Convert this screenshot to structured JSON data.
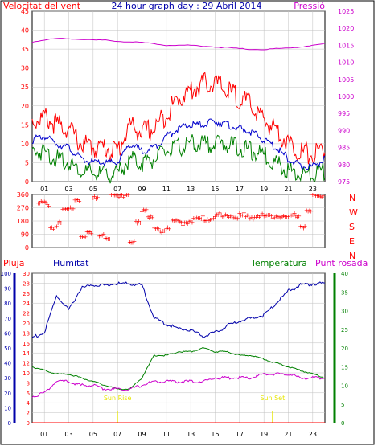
{
  "title": "24 hour graph day : 29 Abril 2014",
  "colors": {
    "wind": "#ff0000",
    "wind_avg": "#0000cc",
    "wind_gust_low": "#008000",
    "pressure": "#cc00cc",
    "direction": "#ff0000",
    "humidity": "#0000aa",
    "temperature": "#008000",
    "dewpoint": "#cc00cc",
    "rain": "#ff0000",
    "sun_marker": "#e6e600",
    "grid": "#c0c0c0"
  },
  "x_ticks": [
    "01",
    "03",
    "05",
    "07",
    "09",
    "11",
    "13",
    "15",
    "17",
    "19",
    "21",
    "23"
  ],
  "panel1": {
    "left_label": "Velocitat del vent",
    "right_label": "Pressió",
    "left_ticks": [
      "0",
      "5",
      "10",
      "15",
      "20",
      "25",
      "30",
      "35",
      "40",
      "45"
    ],
    "right_ticks": [
      "975",
      "980",
      "985",
      "990",
      "995",
      "1000",
      "1005",
      "1010",
      "1015",
      "1020",
      "1025"
    ]
  },
  "panel2": {
    "left_ticks": [
      "0",
      "90",
      "180",
      "270",
      "360"
    ],
    "right_labels": [
      "N",
      "W",
      "S",
      "E",
      "N"
    ]
  },
  "panel3": {
    "labels": {
      "rain": "Pluja",
      "humidity": "Humitat",
      "temperature": "Temperatura",
      "dewpoint": "Punt rosada"
    },
    "humidity_ticks": [
      "0",
      "10",
      "20",
      "30",
      "40",
      "50",
      "60",
      "70",
      "80",
      "90",
      "100"
    ],
    "rain_ticks": [
      "0",
      "2",
      "4",
      "6",
      "8",
      "10",
      "12",
      "14",
      "16",
      "18",
      "20",
      "22",
      "24",
      "26",
      "28",
      "30"
    ],
    "temp_ticks": [
      "0",
      "5",
      "10",
      "15",
      "20",
      "25",
      "30",
      "35",
      "40"
    ],
    "sunrise_label": "Sun Rise",
    "sunset_label": "Sun Set"
  },
  "chart_data": [
    {
      "type": "line",
      "title": "24 hour graph day : 29 Abril 2014",
      "xlabel": "",
      "ylabel": "Velocitat del vent",
      "ylim": [
        0,
        45
      ],
      "y2lim": [
        975,
        1025
      ],
      "x": [
        0,
        1,
        2,
        3,
        4,
        5,
        6,
        7,
        8,
        9,
        10,
        11,
        12,
        13,
        14,
        15,
        16,
        17,
        18,
        19,
        20,
        21,
        22,
        23,
        24
      ],
      "series": [
        {
          "name": "",
          "role": "wind_gust",
          "values": [
            16,
            17,
            15,
            14,
            10,
            9,
            9,
            8,
            15,
            13,
            14,
            18,
            22,
            24,
            26,
            26,
            24,
            22,
            20,
            16,
            14,
            10,
            8,
            7,
            9
          ]
        },
        {
          "name": "",
          "role": "wind_avg",
          "values": [
            11,
            12,
            10,
            9,
            6,
            5,
            5,
            5,
            10,
            8,
            9,
            12,
            14,
            15,
            15,
            16,
            15,
            14,
            13,
            11,
            9,
            6,
            4,
            4,
            6
          ]
        },
        {
          "name": "",
          "role": "wind_low",
          "values": [
            8,
            8,
            6,
            5,
            3,
            2,
            2,
            2,
            6,
            5,
            6,
            8,
            9,
            10,
            10,
            10,
            10,
            9,
            8,
            7,
            5,
            3,
            2,
            2,
            3
          ]
        },
        {
          "name": "Pressió",
          "role": "pressure",
          "values": [
            1016,
            1016.5,
            1017,
            1017,
            1016.8,
            1016.5,
            1016.5,
            1016.2,
            1016,
            1015.8,
            1015.5,
            1015,
            1015,
            1015,
            1014.8,
            1014.5,
            1014.3,
            1014,
            1013.8,
            1013.8,
            1014,
            1014.2,
            1014.5,
            1015,
            1015.5
          ]
        }
      ]
    },
    {
      "type": "scatter",
      "ylabel": "",
      "ylim": [
        0,
        360
      ],
      "series": [
        {
          "name": "",
          "role": "direction",
          "x": [
            0.5,
            1,
            1.5,
            2,
            2.5,
            3,
            3.5,
            4,
            4.5,
            5,
            5.5,
            6,
            6.5,
            7,
            7.5,
            8,
            8.5,
            9,
            9.5,
            10,
            10.5,
            11,
            11.5,
            12,
            12.5,
            13,
            13.5,
            14,
            14.5,
            15,
            15.5,
            16,
            16.5,
            17,
            17.5,
            18,
            18.5,
            19,
            19.5,
            20,
            20.5,
            21,
            21.5,
            22,
            22.5,
            23,
            23.5
          ],
          "values": [
            300,
            300,
            140,
            160,
            250,
            280,
            330,
            70,
            100,
            350,
            90,
            60,
            360,
            360,
            360,
            30,
            180,
            260,
            200,
            130,
            120,
            140,
            170,
            170,
            180,
            190,
            190,
            200,
            200,
            220,
            210,
            220,
            210,
            220,
            210,
            210,
            220,
            210,
            210,
            220,
            210,
            210,
            220,
            150,
            240,
            350,
            360
          ]
        }
      ]
    },
    {
      "type": "line",
      "ylabel": "Humitat",
      "ylim": [
        0,
        100
      ],
      "y2lim": [
        0,
        40
      ],
      "series": [
        {
          "name": "Humitat",
          "role": "humidity",
          "values": [
            57,
            60,
            85,
            75,
            90,
            92,
            92,
            93,
            93,
            92,
            70,
            66,
            63,
            62,
            58,
            60,
            65,
            68,
            70,
            72,
            80,
            88,
            92,
            93,
            93
          ]
        },
        {
          "name": "Temperatura",
          "role": "temperature",
          "values": [
            15,
            14,
            13,
            13,
            12,
            11,
            10,
            9,
            9,
            12,
            18,
            18,
            19,
            19,
            20,
            19,
            19,
            18,
            18,
            17,
            16,
            15,
            14,
            13,
            12
          ]
        },
        {
          "name": "Punt rosada",
          "role": "dewpoint",
          "values": [
            7,
            8,
            11,
            11,
            10,
            10,
            9,
            9,
            9,
            10,
            11,
            11,
            11,
            11,
            11,
            12,
            12,
            12,
            12,
            13,
            13,
            13,
            12,
            12,
            12
          ]
        },
        {
          "name": "Pluja",
          "role": "rain",
          "values": [
            0,
            0,
            0,
            0,
            0,
            0,
            0,
            0,
            0,
            0,
            0,
            0,
            0,
            0,
            0,
            0,
            0,
            0,
            0,
            0,
            0,
            0,
            0,
            0,
            0
          ]
        }
      ],
      "sunrise_hour": 7,
      "sunset_hour": 19.7
    }
  ]
}
